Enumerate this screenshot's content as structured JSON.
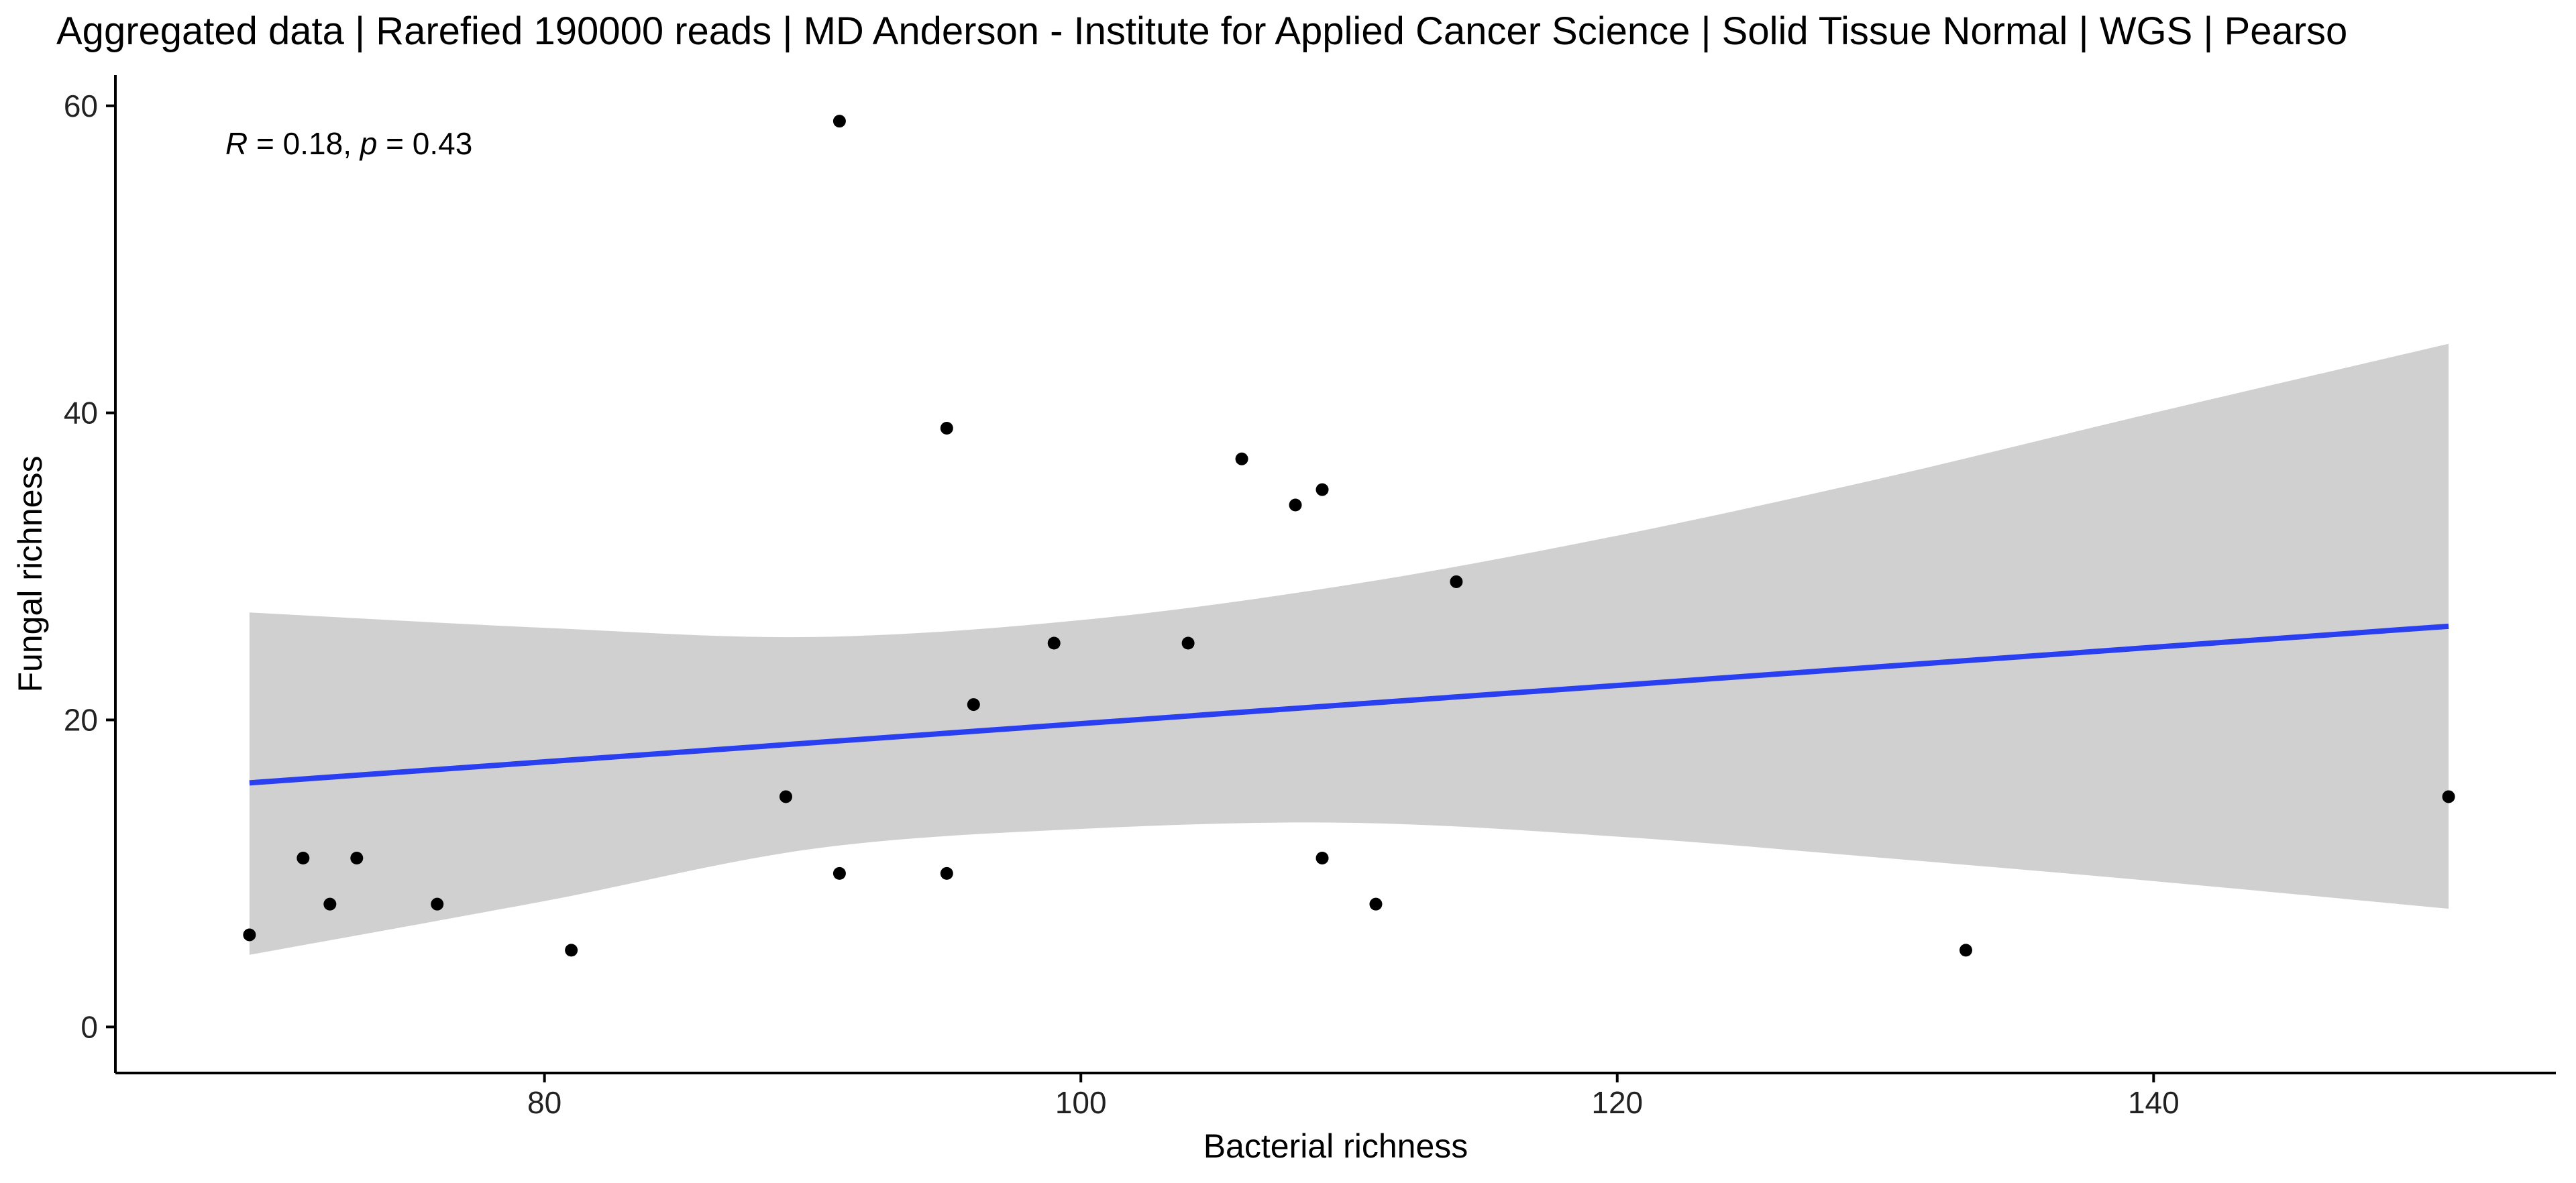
{
  "chart_data": {
    "type": "scatter",
    "title": "Aggregated data | Rarefied 190000 reads | MD Anderson - Institute for Applied Cancer Science | Solid Tissue Normal | WGS | Pearso",
    "xlabel": "Bacterial richness",
    "ylabel": "Fungal richness",
    "xlim": [
      64,
      155
    ],
    "ylim": [
      -3,
      62
    ],
    "xticks": [
      80,
      100,
      120,
      140
    ],
    "yticks": [
      0,
      20,
      40,
      60
    ],
    "xtick_labels": [
      "80",
      "100",
      "120",
      "140"
    ],
    "ytick_labels": [
      "0",
      "20",
      "40",
      "60"
    ],
    "grid": false,
    "annotation": {
      "r_symbol": "R",
      "r_text": " = 0.18, ",
      "p_symbol": "p",
      "p_text": " = 0.43"
    },
    "points": [
      {
        "x": 69,
        "y": 6
      },
      {
        "x": 71,
        "y": 11
      },
      {
        "x": 72,
        "y": 8
      },
      {
        "x": 73,
        "y": 11
      },
      {
        "x": 76,
        "y": 8
      },
      {
        "x": 81,
        "y": 5
      },
      {
        "x": 89,
        "y": 15
      },
      {
        "x": 91,
        "y": 59
      },
      {
        "x": 91,
        "y": 10
      },
      {
        "x": 95,
        "y": 39
      },
      {
        "x": 95,
        "y": 10
      },
      {
        "x": 96,
        "y": 21
      },
      {
        "x": 99,
        "y": 25
      },
      {
        "x": 104,
        "y": 25
      },
      {
        "x": 106,
        "y": 37
      },
      {
        "x": 108,
        "y": 34
      },
      {
        "x": 109,
        "y": 35
      },
      {
        "x": 109,
        "y": 11
      },
      {
        "x": 111,
        "y": 8
      },
      {
        "x": 114,
        "y": 29
      },
      {
        "x": 133,
        "y": 5
      },
      {
        "x": 151,
        "y": 15
      }
    ],
    "regression": {
      "x": [
        69,
        151
      ],
      "y": [
        15.9,
        26.1
      ]
    },
    "confidence_band": {
      "x": [
        69,
        80,
        90,
        100,
        110,
        120,
        130,
        140,
        151
      ],
      "upper": [
        27.0,
        26.0,
        25.4,
        26.5,
        28.8,
        32.0,
        35.8,
        40.0,
        44.5
      ],
      "lower": [
        4.7,
        8.2,
        11.6,
        12.9,
        13.3,
        12.4,
        11.0,
        9.5,
        7.7
      ]
    },
    "colors": {
      "line": "#2a3ff0",
      "band": "#d0d0d0",
      "point": "#000000",
      "axis": "#000000"
    }
  }
}
